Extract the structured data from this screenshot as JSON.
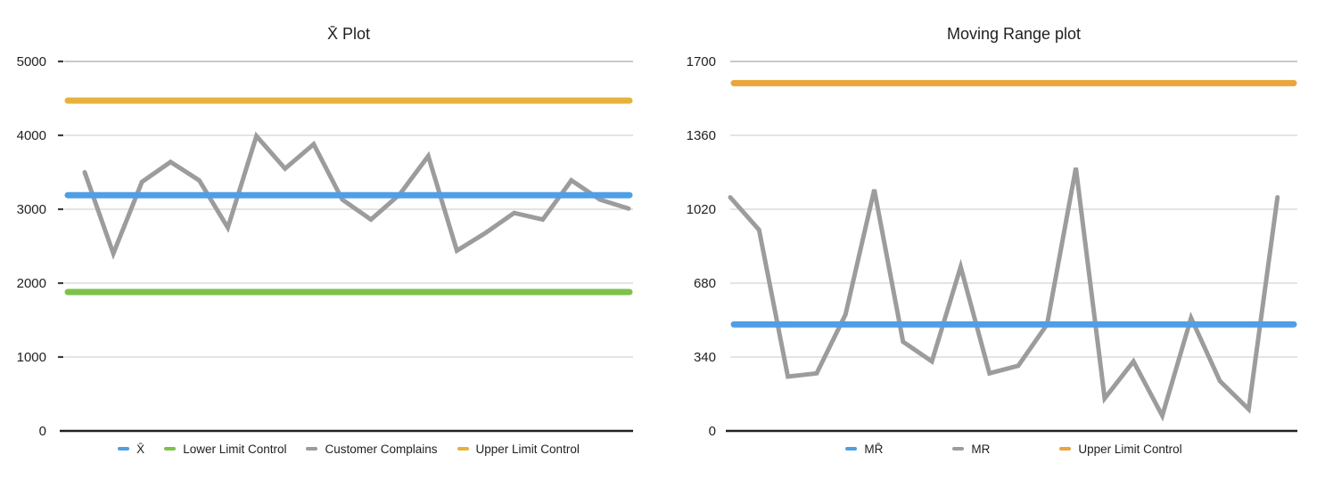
{
  "page": {
    "background": "#ffffff"
  },
  "colors": {
    "mean_line": "#4f9fe6",
    "lower_limit": "#7dc24a",
    "upper_limit_left": "#e6b23c",
    "upper_limit_right": "#eaa53c",
    "data_series": "#9c9c9c",
    "gridline": "#dcdcdc",
    "gridline_top": "#b9b9b9",
    "baseline": "#212121",
    "text": "#1f1f1f"
  },
  "chart_data": [
    {
      "type": "line",
      "title": "X̄ Plot",
      "ylim": [
        0,
        5000
      ],
      "y_ticks": [
        0,
        1000,
        2000,
        3000,
        4000,
        5000
      ],
      "grid": true,
      "legend_position": "bottom",
      "series": [
        {
          "name": "X̄",
          "style": "control-line",
          "color": "#4f9fe6",
          "value": 3190
        },
        {
          "name": "Lower Limit Control",
          "style": "control-line",
          "color": "#7dc24a",
          "value": 1880
        },
        {
          "name": "Customer Complains",
          "style": "line",
          "color": "#9c9c9c",
          "values": [
            3500,
            2400,
            3370,
            3640,
            3390,
            2750,
            3990,
            3550,
            3880,
            3130,
            2860,
            3200,
            3720,
            2440,
            2680,
            2950,
            2860,
            3390,
            3130,
            3010
          ]
        },
        {
          "name": "Upper Limit Control",
          "style": "control-line",
          "color": "#e6b23c",
          "value": 4470
        }
      ]
    },
    {
      "type": "line",
      "title": "Moving Range plot",
      "ylim": [
        0,
        1700
      ],
      "y_ticks": [
        0,
        340,
        680,
        1020,
        1360,
        1700
      ],
      "grid": true,
      "legend_position": "bottom",
      "series": [
        {
          "name": "MR̄",
          "style": "control-line",
          "color": "#4f9fe6",
          "value": 490
        },
        {
          "name": "MR",
          "style": "line",
          "color": "#9c9c9c",
          "values": [
            1075,
            925,
            250,
            265,
            535,
            1110,
            410,
            320,
            755,
            265,
            300,
            490,
            1210,
            150,
            320,
            70,
            520,
            230,
            100,
            1075
          ]
        },
        {
          "name": "Upper Limit Control",
          "style": "control-line",
          "color": "#eaa53c",
          "value": 1600
        }
      ]
    }
  ]
}
